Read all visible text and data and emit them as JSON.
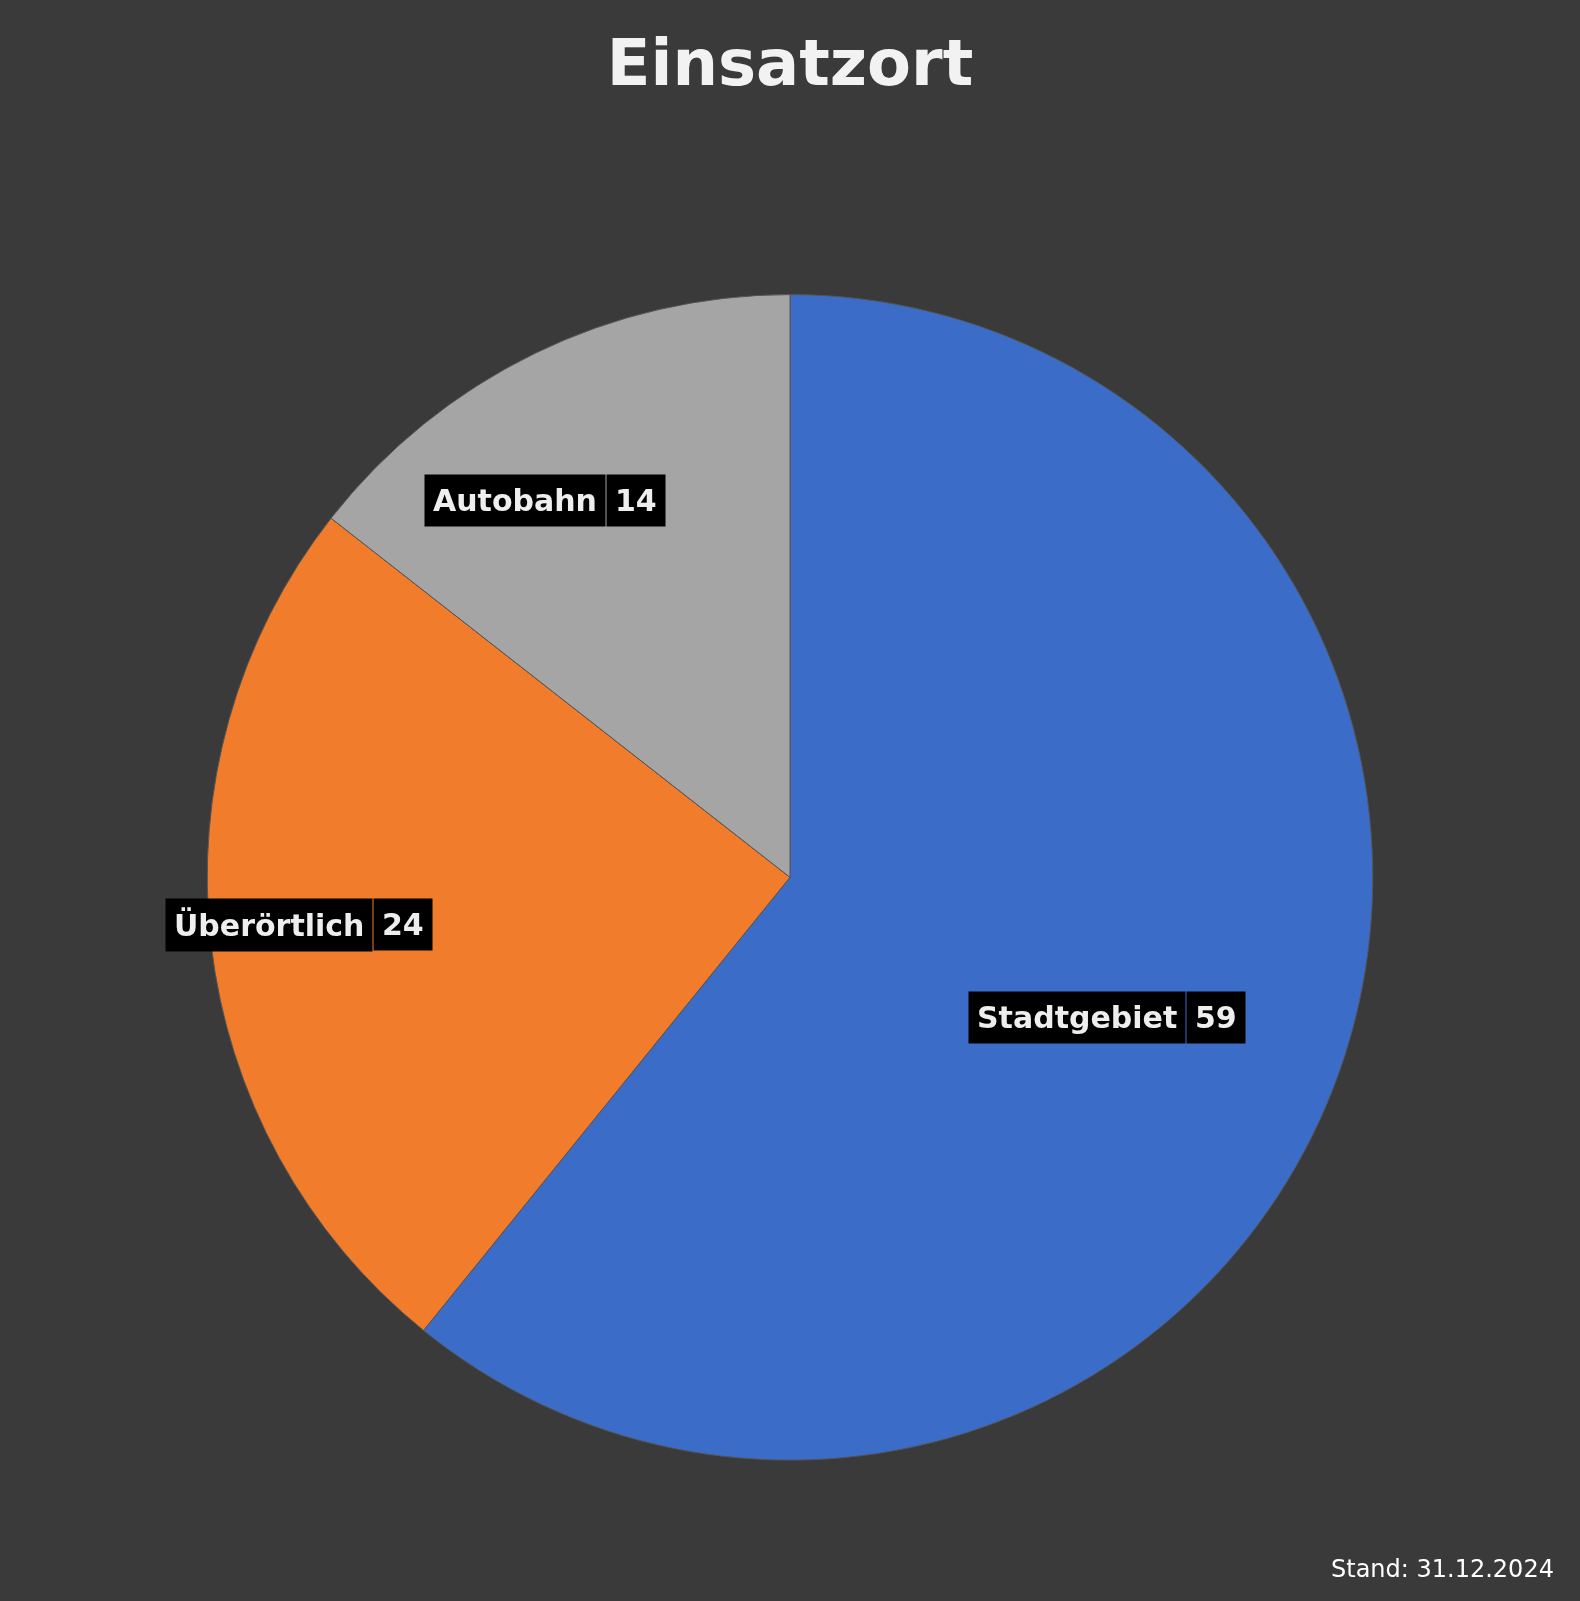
{
  "chart_data": {
    "type": "pie",
    "title": "Einsatzort",
    "categories": [
      "Stadtgebiet",
      "Überörtlich",
      "Autobahn"
    ],
    "values": [
      59,
      24,
      14
    ],
    "colors": [
      "#3a6cc8",
      "#f07c2c",
      "#a5a5a5"
    ],
    "data_labels": true,
    "legend": false,
    "annotations": [
      "Stand: 31.12.2024"
    ]
  }
}
